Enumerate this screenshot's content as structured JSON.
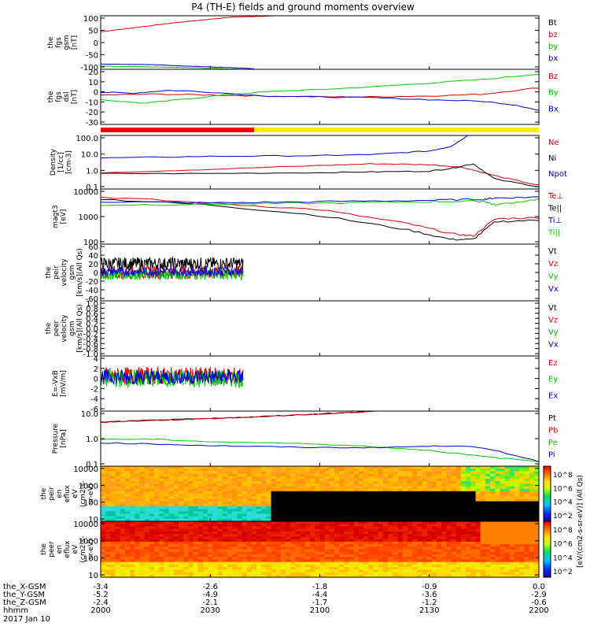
{
  "title": "P4 (TH-E) fields and ground moments overview",
  "date_label": "2017 Jan 10",
  "colorbar_unit": "[eV/(cm2-s-sr-eV)] (All Qs)",
  "colorbar_ticks": [
    "10^8",
    "10^6",
    "10^4",
    "10^2"
  ],
  "ephemeris": {
    "row_labels": [
      "the_X-GSM",
      "the_Y-GSM",
      "the_Z-GSM",
      "hhmm"
    ],
    "x_gsm": [
      "-3.4",
      "-2.6",
      "-1.8",
      "-0.9",
      "0.0"
    ],
    "y_gsm": [
      "-5.2",
      "-4.9",
      "-4.4",
      "-3.6",
      "-2.9"
    ],
    "z_gsm": [
      "-2.4",
      "-2.1",
      "-1.7",
      "-1.2",
      "-0.6"
    ],
    "hhmm": [
      "2000",
      "2030",
      "2100",
      "2130",
      "2200"
    ]
  },
  "chart_data": [
    {
      "type": "line",
      "panel": "fgs_gsm",
      "ylabel": [
        "the",
        "fgs",
        "gsm",
        "[nT]"
      ],
      "ylim": [
        -100,
        100
      ],
      "yticks": [
        "100",
        "50",
        "0",
        "-50",
        "-100"
      ],
      "legend": [
        "Bt",
        "bz",
        "by",
        "bx"
      ],
      "series": [
        {
          "name": "bz",
          "color": "#dd0000",
          "x": [
            0,
            0.3,
            0.7,
            1.2,
            1.6
          ],
          "y": [
            40,
            55,
            75,
            95,
            100
          ]
        },
        {
          "name": "by",
          "color": "#00bb00",
          "x": [
            0,
            0.3,
            0.6,
            1.0,
            1.3
          ],
          "y": [
            -88,
            -90,
            -92,
            -96,
            -100
          ]
        },
        {
          "name": "bx",
          "color": "#0000cc",
          "x": [
            0,
            0.4,
            0.8,
            1.2,
            1.4
          ],
          "y": [
            -80,
            -82,
            -88,
            -94,
            -98
          ]
        }
      ]
    },
    {
      "type": "line",
      "panel": "fgs_dsl",
      "ylabel": [
        "the",
        "fgs",
        "dsl",
        "[nT]"
      ],
      "ylim": [
        -35,
        25
      ],
      "yticks": [
        "20",
        "10",
        "0",
        "-10",
        "-20",
        "-30"
      ],
      "legend": [
        "Bz",
        "By",
        "Bx"
      ],
      "series": [
        {
          "name": "Bz",
          "color": "#dd0000",
          "x": [
            0,
            0.5,
            1,
            1.5,
            2,
            2.5,
            3,
            3.5,
            4
          ],
          "y": [
            -3,
            -2,
            -3,
            -4,
            -5,
            -5,
            -4,
            -2,
            5
          ]
        },
        {
          "name": "By",
          "color": "#00cc00",
          "x": [
            0,
            0.4,
            0.8,
            1.2,
            1.6,
            2,
            2.5,
            3,
            3.5,
            4
          ],
          "y": [
            -8,
            -12,
            -7,
            -2,
            1,
            3,
            6,
            10,
            14,
            20
          ]
        },
        {
          "name": "Bx",
          "color": "#0000dd",
          "x": [
            0,
            0.3,
            0.6,
            0.9,
            1.5,
            2,
            2.5,
            3,
            3.5,
            3.8,
            4
          ],
          "y": [
            0,
            -1,
            2,
            1,
            -4,
            -5,
            -6,
            -8,
            -10,
            -14,
            -20
          ]
        }
      ]
    },
    {
      "type": "bar_strip",
      "panel": "mode_bar",
      "segments": [
        {
          "from": 0,
          "to": 1.4,
          "color": "#ee0000"
        },
        {
          "from": 1.4,
          "to": 4,
          "color": "#ffee00"
        }
      ]
    },
    {
      "type": "line",
      "panel": "density",
      "yscale": "log",
      "ylabel": [
        "Density",
        "[1/cc]",
        "[cm-3]"
      ],
      "ylim": [
        0.07,
        200
      ],
      "yticks": [
        "100.0",
        "10.0",
        "1.0",
        "0.1"
      ],
      "legend": [
        "Ne",
        "Ni",
        "Npot"
      ],
      "series": [
        {
          "name": "Ne",
          "color": "#dd0000",
          "x": [
            0,
            1,
            2,
            2.5,
            3,
            3.3,
            3.6,
            4
          ],
          "y": [
            0.8,
            1.3,
            2.3,
            3.0,
            2.6,
            1.8,
            0.5,
            0.12
          ]
        },
        {
          "name": "Ni",
          "color": "#000000",
          "x": [
            0,
            1,
            2,
            2.5,
            3,
            3.2,
            3.4,
            3.6,
            4
          ],
          "y": [
            0.7,
            0.7,
            0.8,
            0.9,
            1.0,
            1.5,
            3.0,
            0.3,
            0.1
          ]
        },
        {
          "name": "Npot",
          "color": "#0000cc",
          "x": [
            0,
            1,
            2,
            2.5,
            3,
            3.2,
            3.35
          ],
          "y": [
            7,
            9,
            10,
            12,
            20,
            40,
            200
          ]
        }
      ]
    },
    {
      "type": "line",
      "panel": "temperature",
      "yscale": "log",
      "ylabel": [
        "magt3",
        "[eV]"
      ],
      "ylim": [
        100,
        12000
      ],
      "yticks": [
        "10000",
        "1000",
        "100"
      ],
      "legend": [
        "Te⊥",
        "Te||",
        "Ti⊥",
        "Ti||"
      ],
      "series": [
        {
          "name": "Te⊥",
          "color": "#dd0000",
          "x": [
            0,
            1,
            2,
            2.8,
            3.2,
            3.4,
            3.6,
            4
          ],
          "y": [
            6000,
            3500,
            2000,
            600,
            250,
            200,
            900,
            1000
          ]
        },
        {
          "name": "Te||",
          "color": "#000000",
          "x": [
            0,
            1,
            2,
            2.8,
            3.2,
            3.4,
            3.6,
            4
          ],
          "y": [
            5000,
            3000,
            1200,
            350,
            150,
            150,
            700,
            800
          ]
        },
        {
          "name": "Ti⊥",
          "color": "#0000dd",
          "x": [
            0,
            1,
            2,
            3,
            3.5,
            3.6,
            4
          ],
          "y": [
            4000,
            3600,
            4000,
            4500,
            5000,
            5500,
            6000
          ]
        },
        {
          "name": "Ti||",
          "color": "#00cc00",
          "x": [
            0,
            1,
            2,
            3,
            3.5,
            3.6,
            4
          ],
          "y": [
            3000,
            3200,
            3500,
            4000,
            4200,
            3000,
            5000
          ]
        }
      ]
    },
    {
      "type": "line",
      "panel": "peir_velocity",
      "ylabel": [
        "the",
        "peir",
        "velocity",
        "gsm",
        "[km/s](All Qs)"
      ],
      "ylim": [
        -65,
        65
      ],
      "yticks": [
        "60",
        "40",
        "20",
        "0",
        "-20",
        "-40",
        "-60"
      ],
      "legend": [
        "Vt",
        "Vz",
        "Vy",
        "Vx"
      ],
      "noise_span": [
        0,
        1.3
      ],
      "series": [
        {
          "name": "Vt",
          "color": "#000000",
          "base": 20,
          "amp": 15
        },
        {
          "name": "Vz",
          "color": "#dd0000",
          "base": 0,
          "amp": 15
        },
        {
          "name": "Vy",
          "color": "#00cc00",
          "base": -5,
          "amp": 12
        },
        {
          "name": "Vx",
          "color": "#0000dd",
          "base": 2,
          "amp": 10
        }
      ]
    },
    {
      "type": "line",
      "panel": "peer_velocity",
      "ylabel": [
        "the",
        "peer",
        "velocity",
        "gsm",
        "[km/s](All Qs)"
      ],
      "ylim": [
        -1,
        1
      ],
      "yticks": [
        "1.0",
        "0.8",
        "0.6",
        "0.4",
        "0.2",
        "0.0",
        "-0.2",
        "-0.4",
        "-0.6",
        "-0.8",
        "-1.0"
      ],
      "legend": [
        "Vt",
        "Vz",
        "Vy",
        "Vx"
      ],
      "series": []
    },
    {
      "type": "line",
      "panel": "e_field",
      "ylabel": [
        "E=-VxB",
        "[mV/m]"
      ],
      "ylim": [
        -6.5,
        4.5
      ],
      "yticks": [
        "4",
        "2",
        "0",
        "-2",
        "-4",
        "-6"
      ],
      "legend": [
        "Ez",
        "Ey",
        "Ex"
      ],
      "noise_span": [
        0,
        1.3
      ],
      "series": [
        {
          "name": "Ez",
          "color": "#dd0000",
          "base": 0.5,
          "amp": 1.8
        },
        {
          "name": "Ey",
          "color": "#00cc00",
          "base": 0,
          "amp": 1.8
        },
        {
          "name": "Ex",
          "color": "#0000dd",
          "base": 0.3,
          "amp": 1.5
        }
      ]
    },
    {
      "type": "line",
      "panel": "pressure",
      "yscale": "log",
      "ylabel": [
        "Pressure",
        "[nPa]"
      ],
      "ylim": [
        0.01,
        30
      ],
      "yticks": [
        "10.0",
        "1.0",
        "0.1"
      ],
      "legend": [
        "Pt",
        "Pb",
        "Pe",
        "Pi"
      ],
      "series": [
        {
          "name": "Pt",
          "color": "#000000",
          "x": [
            0,
            0.5,
            1,
            1.5,
            2,
            2.5
          ],
          "y": [
            6,
            8,
            10,
            14,
            20,
            30
          ]
        },
        {
          "name": "Pb",
          "color": "#dd0000",
          "x": [
            0,
            0.5,
            1,
            1.5,
            2,
            2.5
          ],
          "y": [
            5.8,
            7.8,
            9.8,
            13.8,
            19.8,
            29
          ]
        },
        {
          "name": "Pe",
          "color": "#00cc00",
          "x": [
            0,
            0.5,
            1,
            2,
            2.5,
            3,
            3.5,
            4
          ],
          "y": [
            0.5,
            0.5,
            0.35,
            0.25,
            0.17,
            0.1,
            0.04,
            0.02
          ]
        },
        {
          "name": "Pi",
          "color": "#0000dd",
          "x": [
            0,
            0.5,
            1,
            1.5,
            2,
            2.5,
            3,
            3.3,
            3.6,
            4
          ],
          "y": [
            0.3,
            0.25,
            0.2,
            0.17,
            0.15,
            0.15,
            0.18,
            0.2,
            0.1,
            0.02
          ]
        }
      ]
    },
    {
      "type": "heatmap",
      "panel": "peir_spec",
      "yscale": "log",
      "ylabel": [
        "the",
        "peir",
        "en",
        "eflux",
        "eV",
        "(cm2-s-",
        "sr-eV)"
      ],
      "ylim": [
        7,
        20000
      ],
      "yticks": [
        "10000",
        "1000",
        "100",
        "10"
      ]
    },
    {
      "type": "heatmap",
      "panel": "peer_spec",
      "yscale": "log",
      "ylabel": [
        "the",
        "peer",
        "en",
        "eflux",
        "eV",
        "(cm2-s-",
        "sr-eV)"
      ],
      "ylim": [
        7,
        20000
      ],
      "yticks": [
        "10000",
        "1000",
        "100",
        "10"
      ]
    }
  ]
}
